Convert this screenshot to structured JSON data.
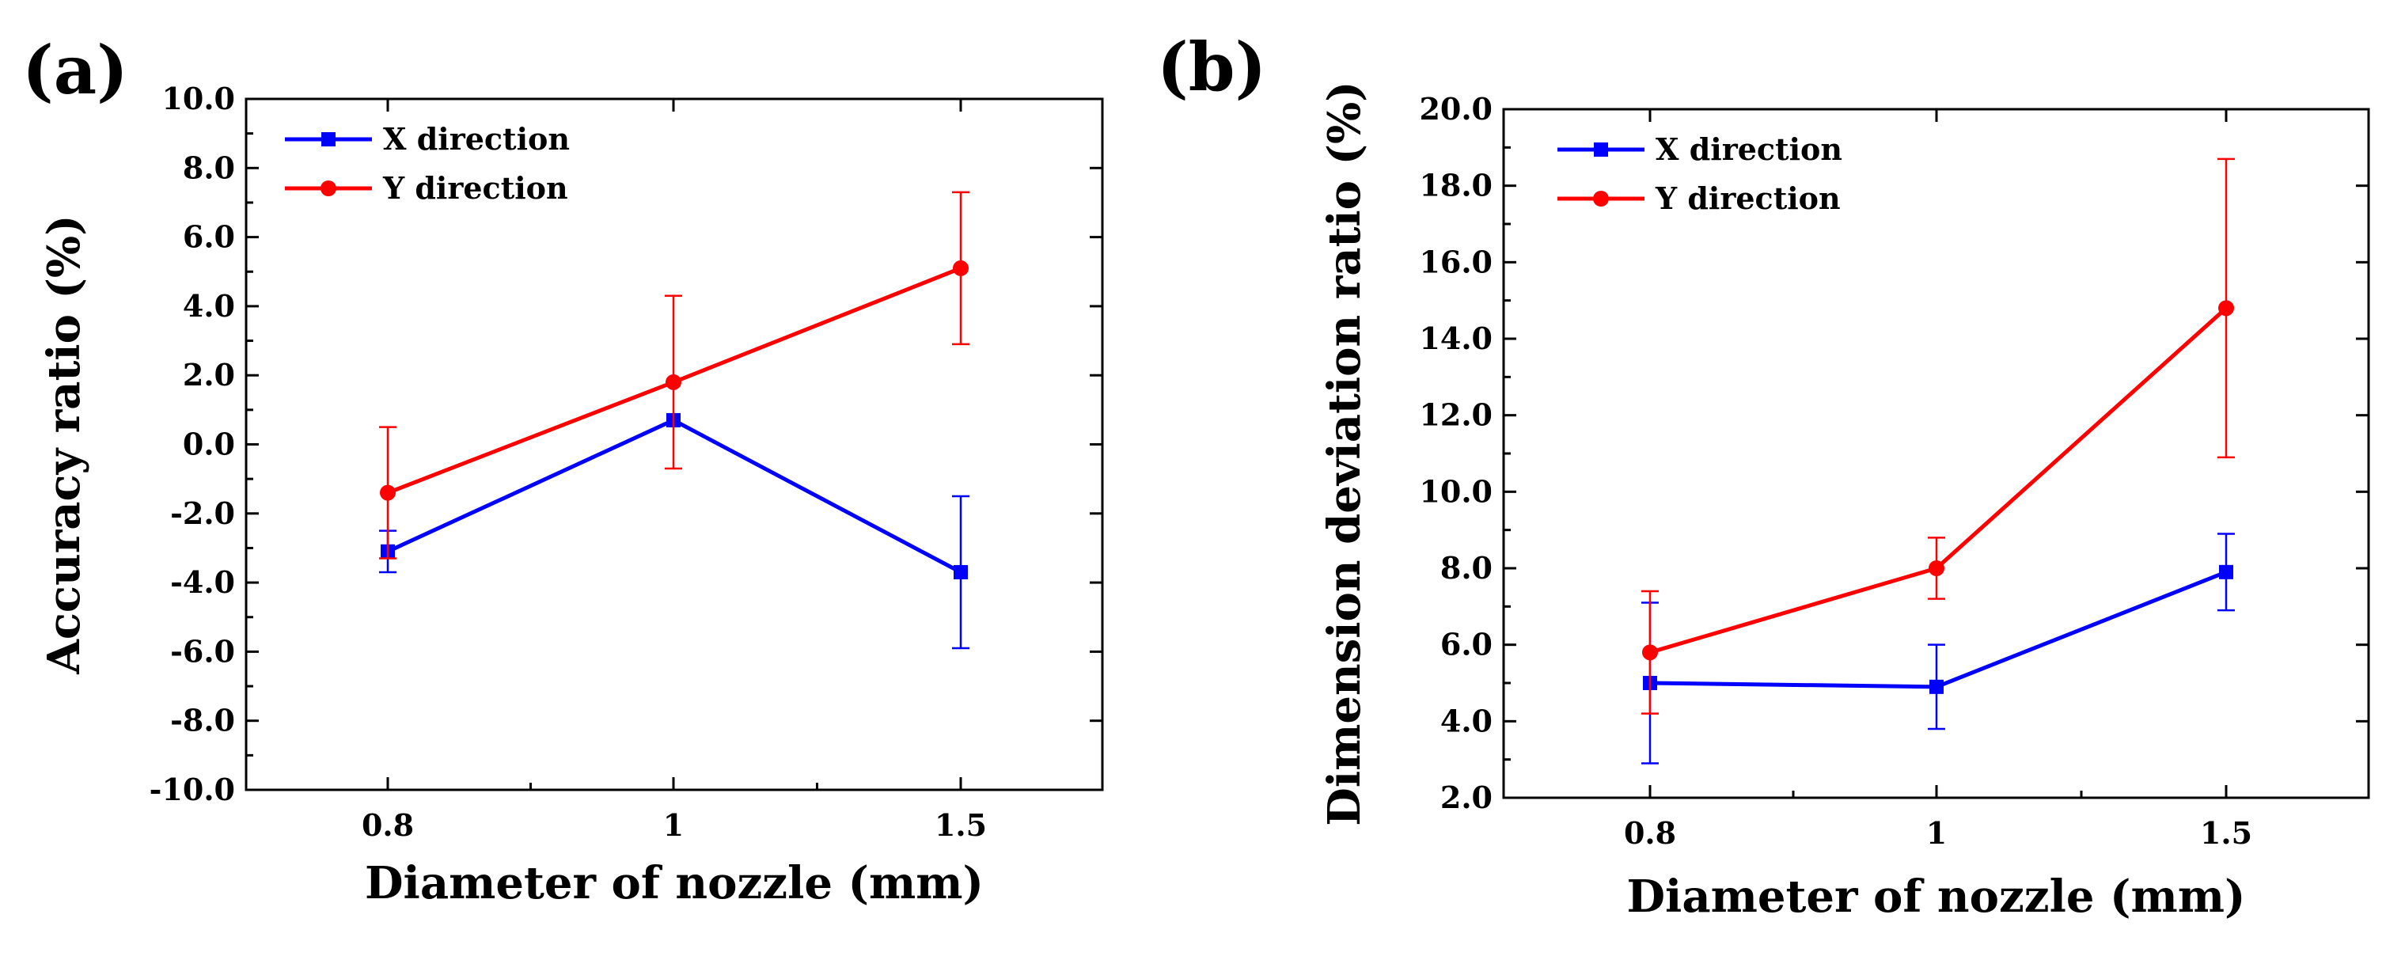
{
  "chart_data": [
    {
      "panel_label": "(a)",
      "type": "line",
      "categories": [
        "0.8",
        "1",
        "1.5"
      ],
      "xlabel": "Diameter of nozzle (mm)",
      "ylabel": "Accuracy ratio (%)",
      "ylim": [
        -10.0,
        10.0
      ],
      "yticks": [
        "-10.0",
        "-8.0",
        "-6.0",
        "-4.0",
        "-2.0",
        "0.0",
        "2.0",
        "4.0",
        "6.0",
        "8.0",
        "10.0"
      ],
      "grid": false,
      "legend_position": "top-left",
      "series": [
        {
          "name": "X direction",
          "color": "#0000ff",
          "marker": "square",
          "values": [
            -3.1,
            0.7,
            -3.7
          ],
          "errors": [
            0.6,
            0.0,
            2.2
          ]
        },
        {
          "name": "Y direction",
          "color": "#ff0000",
          "marker": "circle",
          "values": [
            -1.4,
            1.8,
            5.1
          ],
          "errors": [
            1.9,
            2.5,
            2.2
          ]
        }
      ]
    },
    {
      "panel_label": "(b)",
      "type": "line",
      "categories": [
        "0.8",
        "1",
        "1.5"
      ],
      "xlabel": "Diameter of nozzle (mm)",
      "ylabel": "Dimension deviation ratio (%)",
      "ylim": [
        2.0,
        20.0
      ],
      "yticks": [
        "2.0",
        "4.0",
        "6.0",
        "8.0",
        "10.0",
        "12.0",
        "14.0",
        "16.0",
        "18.0",
        "20.0"
      ],
      "grid": false,
      "legend_position": "top-left",
      "series": [
        {
          "name": "X direction",
          "color": "#0000ff",
          "marker": "square",
          "values": [
            5.0,
            4.9,
            7.9
          ],
          "errors": [
            2.1,
            1.1,
            1.0
          ]
        },
        {
          "name": "Y direction",
          "color": "#ff0000",
          "marker": "circle",
          "values": [
            5.8,
            8.0,
            14.8
          ],
          "errors": [
            1.6,
            0.8,
            3.9
          ]
        }
      ]
    }
  ]
}
